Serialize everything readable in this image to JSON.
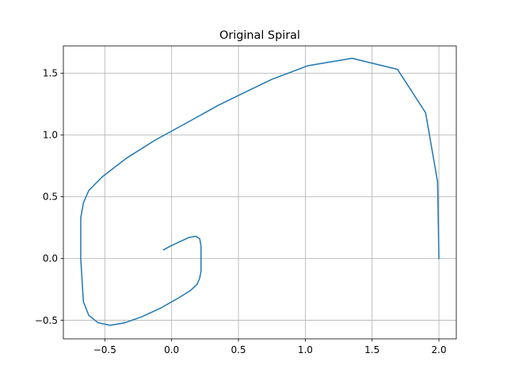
{
  "chart_data": {
    "type": "line",
    "title": "Original Spiral",
    "xlabel": "",
    "ylabel": "",
    "xlim": [
      -0.81,
      2.13
    ],
    "ylim": [
      -0.65,
      1.72
    ],
    "xticks": [
      -0.5,
      0.0,
      0.5,
      1.0,
      1.5,
      2.0
    ],
    "xtick_labels": [
      "−0.5",
      "0.0",
      "0.5",
      "1.0",
      "1.5",
      "2.0"
    ],
    "yticks": [
      -0.5,
      0.0,
      0.5,
      1.0,
      1.5
    ],
    "ytick_labels": [
      "−0.5",
      "0.0",
      "0.5",
      "1.0",
      "1.5"
    ],
    "grid": true,
    "series": [
      {
        "color": "#1f77b4",
        "x": [
          2.0,
          1.99,
          1.9,
          1.69,
          1.35,
          1.02,
          0.75,
          0.52,
          0.35,
          0.1,
          -0.12,
          -0.34,
          -0.52,
          -0.62,
          -0.66,
          -0.68,
          -0.68,
          -0.68,
          -0.67,
          -0.66,
          -0.62,
          -0.55,
          -0.46,
          -0.35,
          -0.22,
          -0.08,
          0.05,
          0.14,
          0.19,
          0.21,
          0.22,
          0.22,
          0.22,
          0.21,
          0.18,
          0.13,
          0.05,
          -0.01,
          -0.06
        ],
        "y": [
          0.0,
          0.62,
          1.18,
          1.53,
          1.62,
          1.56,
          1.45,
          1.33,
          1.24,
          1.09,
          0.96,
          0.81,
          0.66,
          0.55,
          0.45,
          0.33,
          0.18,
          0.0,
          -0.18,
          -0.35,
          -0.46,
          -0.52,
          -0.54,
          -0.52,
          -0.47,
          -0.4,
          -0.32,
          -0.26,
          -0.21,
          -0.16,
          -0.1,
          0.0,
          0.1,
          0.16,
          0.18,
          0.17,
          0.13,
          0.1,
          0.07
        ]
      }
    ]
  }
}
